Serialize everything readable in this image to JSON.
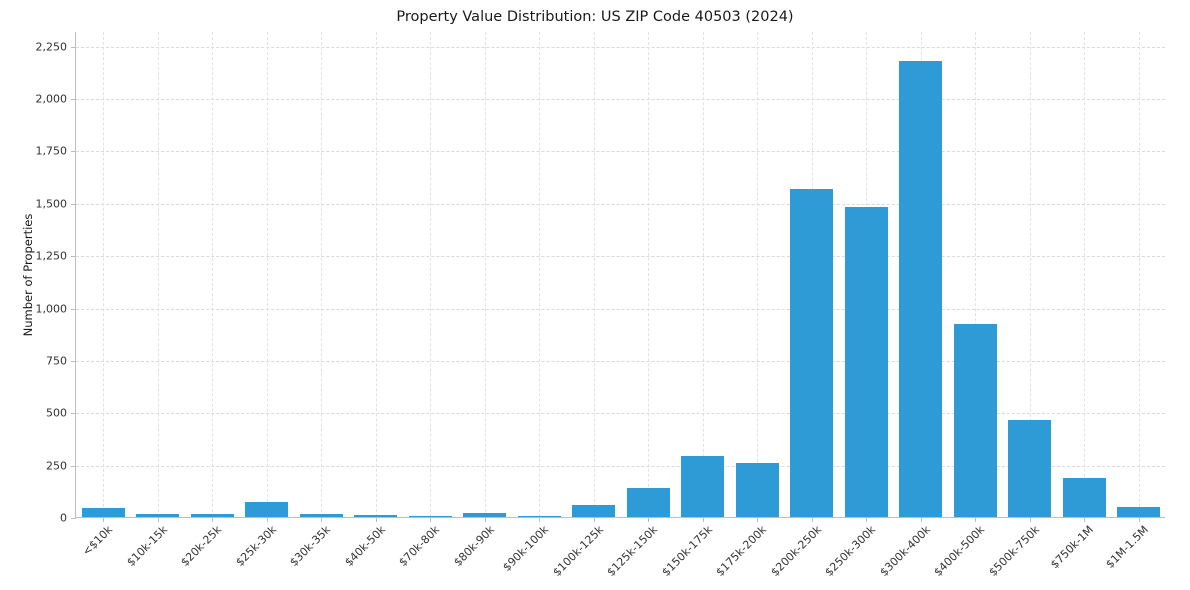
{
  "chart_data": {
    "type": "bar",
    "title": "Property Value Distribution: US ZIP Code 40503 (2024)",
    "xlabel": "",
    "ylabel": "Number of Properties",
    "categories": [
      "<$10k",
      "$10k-15k",
      "$20k-25k",
      "$25k-30k",
      "$30k-35k",
      "$40k-50k",
      "$70k-80k",
      "$80k-90k",
      "$90k-100k",
      "$100k-125k",
      "$125k-150k",
      "$150k-175k",
      "$175k-200k",
      "$200k-250k",
      "$250k-300k",
      "$300k-400k",
      "$400k-500k",
      "$500k-750k",
      "$750k-1M",
      "$1M-1.5M"
    ],
    "values": [
      45,
      15,
      15,
      70,
      15,
      10,
      5,
      20,
      3,
      55,
      140,
      290,
      260,
      1565,
      1480,
      2175,
      920,
      465,
      185,
      50
    ],
    "ylim": [
      0,
      2250
    ],
    "yticks": [
      {
        "value": 0,
        "label": "0"
      },
      {
        "value": 250,
        "label": "250"
      },
      {
        "value": 500,
        "label": "500"
      },
      {
        "value": 750,
        "label": "750"
      },
      {
        "value": 1000,
        "label": "1,000"
      },
      {
        "value": 1250,
        "label": "1,250"
      },
      {
        "value": 1500,
        "label": "1,500"
      },
      {
        "value": 1750,
        "label": "1,750"
      },
      {
        "value": 2000,
        "label": "2,000"
      },
      {
        "value": 2250,
        "label": "2,250"
      }
    ],
    "scale_max": 2320,
    "bar_color": "#2e9bd6",
    "grid": "dashed-horizontal-and-vertical",
    "legend_position": "none",
    "background_color": "#ffffff"
  }
}
